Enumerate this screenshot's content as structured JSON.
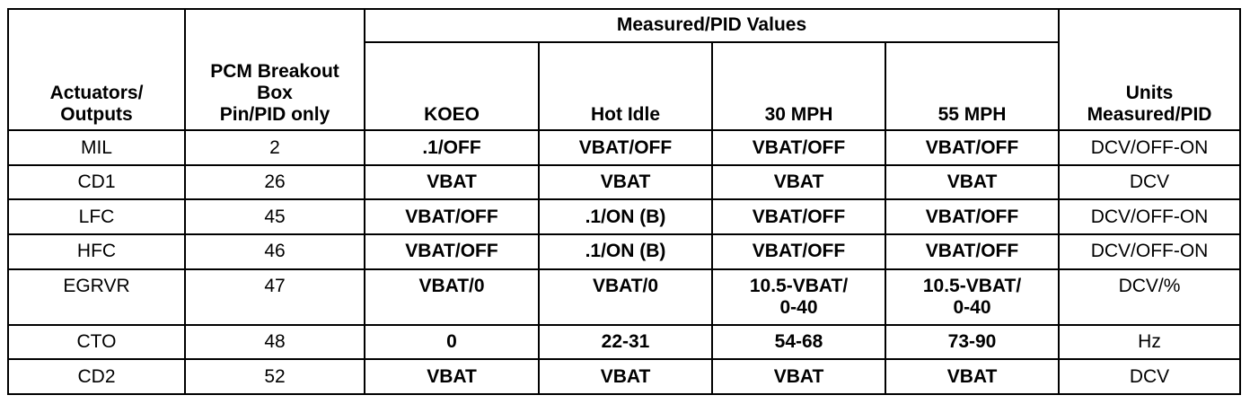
{
  "headers": {
    "actuators": [
      "Actuators/",
      "Outputs"
    ],
    "pcm": [
      "PCM Breakout",
      "Box",
      "Pin/PID only"
    ],
    "group": "Measured/PID Values",
    "koeo": "KOEO",
    "hot_idle": "Hot Idle",
    "mph30": "30 MPH",
    "mph55": "55 MPH",
    "units": [
      "Units",
      "Measured/PID"
    ]
  },
  "rows": [
    {
      "actuator": "MIL",
      "pin": "2",
      "koeo": ".1/OFF",
      "hot_idle": "VBAT/OFF",
      "mph30": "VBAT/OFF",
      "mph55": "VBAT/OFF",
      "units": "DCV/OFF-ON"
    },
    {
      "actuator": "CD1",
      "pin": "26",
      "koeo": "VBAT",
      "hot_idle": "VBAT",
      "mph30": "VBAT",
      "mph55": "VBAT",
      "units": "DCV"
    },
    {
      "actuator": "LFC",
      "pin": "45",
      "koeo": "VBAT/OFF",
      "hot_idle": ".1/ON (B)",
      "mph30": "VBAT/OFF",
      "mph55": "VBAT/OFF",
      "units": "DCV/OFF-ON"
    },
    {
      "actuator": "HFC",
      "pin": "46",
      "koeo": "VBAT/OFF",
      "hot_idle": ".1/ON (B)",
      "mph30": "VBAT/OFF",
      "mph55": "VBAT/OFF",
      "units": "DCV/OFF-ON"
    },
    {
      "actuator": "EGRVR",
      "pin": "47",
      "koeo": "VBAT/0",
      "hot_idle": "VBAT/0",
      "mph30": [
        "10.5-VBAT/",
        "0-40"
      ],
      "mph55": [
        "10.5-VBAT/",
        "0-40"
      ],
      "units": "DCV/%"
    },
    {
      "actuator": "CTO",
      "pin": "48",
      "koeo": "0",
      "hot_idle": "22-31",
      "mph30": "54-68",
      "mph55": "73-90",
      "units": "Hz"
    },
    {
      "actuator": "CD2",
      "pin": "52",
      "koeo": "VBAT",
      "hot_idle": "VBAT",
      "mph30": "VBAT",
      "mph55": "VBAT",
      "units": "DCV"
    }
  ]
}
